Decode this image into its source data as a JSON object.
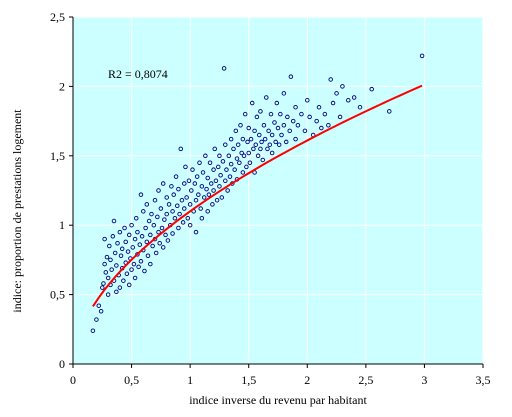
{
  "chart_data": {
    "type": "scatter",
    "xlabel": "indice inverse du revenu par habitant",
    "ylabel": "indice: proportion de prestations logement",
    "annotation": "R2 = 0,8074",
    "xlim": [
      0,
      3.5
    ],
    "ylim": [
      0,
      2.5
    ],
    "xticks": [
      0,
      0.5,
      1,
      1.5,
      2,
      2.5,
      3,
      3.5
    ],
    "yticks": [
      0,
      0.5,
      1,
      1.5,
      2,
      2.5
    ],
    "xtick_labels": [
      "0",
      "0,5",
      "1",
      "1,5",
      "2",
      "2,5",
      "3",
      "3,5"
    ],
    "ytick_labels": [
      "0",
      "0,5",
      "1",
      "1,5",
      "2",
      "2,5"
    ],
    "grid": true,
    "colors": {
      "plot_bg": "#ccffff",
      "points": "#000080",
      "trend": "#ff0000",
      "grid": "#ffffff"
    },
    "trendline": {
      "type": "power",
      "a": 1.1,
      "b": 0.55,
      "x_range": [
        0.17,
        2.98
      ]
    },
    "points": [
      [
        0.17,
        0.24
      ],
      [
        0.2,
        0.32
      ],
      [
        0.22,
        0.42
      ],
      [
        0.24,
        0.38
      ],
      [
        0.25,
        0.55
      ],
      [
        0.26,
        0.58
      ],
      [
        0.27,
        0.72
      ],
      [
        0.27,
        0.9
      ],
      [
        0.28,
        0.66
      ],
      [
        0.29,
        0.77
      ],
      [
        0.3,
        0.62
      ],
      [
        0.3,
        0.5
      ],
      [
        0.31,
        0.85
      ],
      [
        0.32,
        0.57
      ],
      [
        0.32,
        0.75
      ],
      [
        0.33,
        0.68
      ],
      [
        0.34,
        0.92
      ],
      [
        0.35,
        0.6
      ],
      [
        0.35,
        1.03
      ],
      [
        0.36,
        0.8
      ],
      [
        0.37,
        0.52
      ],
      [
        0.37,
        0.71
      ],
      [
        0.38,
        0.87
      ],
      [
        0.39,
        0.64
      ],
      [
        0.4,
        0.95
      ],
      [
        0.4,
        0.55
      ],
      [
        0.41,
        0.78
      ],
      [
        0.42,
        0.69
      ],
      [
        0.42,
        0.83
      ],
      [
        0.43,
        0.6
      ],
      [
        0.44,
        0.98
      ],
      [
        0.45,
        0.73
      ],
      [
        0.45,
        0.88
      ],
      [
        0.46,
        0.65
      ],
      [
        0.47,
        0.81
      ],
      [
        0.48,
        0.93
      ],
      [
        0.48,
        0.57
      ],
      [
        0.49,
        0.76
      ],
      [
        0.5,
        1.0
      ],
      [
        0.5,
        0.68
      ],
      [
        0.51,
        0.84
      ],
      [
        0.52,
        0.72
      ],
      [
        0.53,
        0.9
      ],
      [
        0.53,
        0.62
      ],
      [
        0.54,
        1.05
      ],
      [
        0.55,
        0.79
      ],
      [
        0.55,
        0.95
      ],
      [
        0.56,
        0.7
      ],
      [
        0.57,
        0.86
      ],
      [
        0.58,
        1.22
      ],
      [
        0.58,
        0.74
      ],
      [
        0.59,
        0.92
      ],
      [
        0.6,
        0.82
      ],
      [
        0.6,
        1.1
      ],
      [
        0.61,
        0.67
      ],
      [
        0.62,
        0.98
      ],
      [
        0.63,
        0.88
      ],
      [
        0.63,
        1.15
      ],
      [
        0.64,
        0.78
      ],
      [
        0.65,
        1.03
      ],
      [
        0.66,
        0.93
      ],
      [
        0.66,
        0.72
      ],
      [
        0.67,
        1.08
      ],
      [
        0.68,
        0.85
      ],
      [
        0.69,
        1.0
      ],
      [
        0.7,
        0.9
      ],
      [
        0.7,
        1.18
      ],
      [
        0.71,
        0.8
      ],
      [
        0.72,
        1.06
      ],
      [
        0.73,
        0.95
      ],
      [
        0.73,
        1.25
      ],
      [
        0.74,
        0.87
      ],
      [
        0.75,
        1.12
      ],
      [
        0.76,
        0.98
      ],
      [
        0.77,
        1.3
      ],
      [
        0.77,
        0.84
      ],
      [
        0.78,
        1.04
      ],
      [
        0.79,
        0.93
      ],
      [
        0.8,
        1.2
      ],
      [
        0.8,
        1.08
      ],
      [
        0.81,
        0.89
      ],
      [
        0.82,
        1.15
      ],
      [
        0.83,
        1.0
      ],
      [
        0.84,
        1.28
      ],
      [
        0.85,
        1.1
      ],
      [
        0.85,
        0.94
      ],
      [
        0.86,
        1.22
      ],
      [
        0.87,
        1.05
      ],
      [
        0.88,
        1.35
      ],
      [
        0.89,
        1.14
      ],
      [
        0.9,
        0.98
      ],
      [
        0.9,
        1.26
      ],
      [
        0.91,
        1.08
      ],
      [
        0.92,
        1.55
      ],
      [
        0.93,
        1.18
      ],
      [
        0.94,
        1.02
      ],
      [
        0.95,
        1.3
      ],
      [
        0.95,
        1.12
      ],
      [
        0.96,
        1.42
      ],
      [
        0.97,
        1.2
      ],
      [
        0.98,
        1.05
      ],
      [
        0.99,
        1.32
      ],
      [
        1.0,
        1.15
      ],
      [
        1.0,
        1.0
      ],
      [
        1.01,
        1.25
      ],
      [
        1.02,
        1.4
      ],
      [
        1.03,
        1.1
      ],
      [
        1.04,
        1.3
      ],
      [
        1.05,
        1.18
      ],
      [
        1.05,
        0.95
      ],
      [
        1.06,
        1.35
      ],
      [
        1.07,
        1.22
      ],
      [
        1.08,
        1.45
      ],
      [
        1.09,
        1.12
      ],
      [
        1.1,
        1.28
      ],
      [
        1.1,
        1.05
      ],
      [
        1.11,
        1.38
      ],
      [
        1.12,
        1.2
      ],
      [
        1.13,
        1.5
      ],
      [
        1.14,
        1.26
      ],
      [
        1.15,
        1.1
      ],
      [
        1.15,
        1.34
      ],
      [
        1.16,
        1.22
      ],
      [
        1.17,
        1.45
      ],
      [
        1.18,
        1.3
      ],
      [
        1.19,
        1.15
      ],
      [
        1.2,
        1.4
      ],
      [
        1.2,
        1.25
      ],
      [
        1.21,
        1.55
      ],
      [
        1.22,
        1.32
      ],
      [
        1.23,
        1.18
      ],
      [
        1.24,
        1.42
      ],
      [
        1.25,
        1.28
      ],
      [
        1.25,
        1.5
      ],
      [
        1.26,
        1.36
      ],
      [
        1.27,
        1.2
      ],
      [
        1.28,
        1.46
      ],
      [
        1.29,
        2.13
      ],
      [
        1.3,
        1.32
      ],
      [
        1.3,
        1.58
      ],
      [
        1.31,
        1.4
      ],
      [
        1.32,
        1.25
      ],
      [
        1.33,
        1.5
      ],
      [
        1.34,
        1.35
      ],
      [
        1.35,
        1.62
      ],
      [
        1.35,
        1.44
      ],
      [
        1.36,
        1.3
      ],
      [
        1.37,
        1.55
      ],
      [
        1.38,
        1.4
      ],
      [
        1.39,
        1.68
      ],
      [
        1.4,
        1.48
      ],
      [
        1.4,
        1.33
      ],
      [
        1.41,
        1.58
      ],
      [
        1.42,
        1.45
      ],
      [
        1.43,
        1.72
      ],
      [
        1.44,
        1.52
      ],
      [
        1.45,
        1.38
      ],
      [
        1.45,
        1.62
      ],
      [
        1.46,
        1.5
      ],
      [
        1.47,
        1.8
      ],
      [
        1.48,
        1.42
      ],
      [
        1.49,
        1.6
      ],
      [
        1.5,
        1.52
      ],
      [
        1.5,
        1.7
      ],
      [
        1.51,
        1.45
      ],
      [
        1.52,
        1.62
      ],
      [
        1.53,
        1.88
      ],
      [
        1.54,
        1.55
      ],
      [
        1.55,
        1.38
      ],
      [
        1.55,
        1.68
      ],
      [
        1.56,
        1.58
      ],
      [
        1.57,
        1.78
      ],
      [
        1.58,
        1.5
      ],
      [
        1.59,
        1.65
      ],
      [
        1.6,
        1.55
      ],
      [
        1.6,
        1.82
      ],
      [
        1.61,
        1.6
      ],
      [
        1.62,
        1.47
      ],
      [
        1.63,
        1.72
      ],
      [
        1.64,
        1.62
      ],
      [
        1.65,
        1.92
      ],
      [
        1.66,
        1.55
      ],
      [
        1.67,
        1.68
      ],
      [
        1.68,
        1.58
      ],
      [
        1.69,
        1.8
      ],
      [
        1.7,
        1.65
      ],
      [
        1.7,
        1.52
      ],
      [
        1.72,
        1.74
      ],
      [
        1.73,
        1.6
      ],
      [
        1.74,
        1.88
      ],
      [
        1.75,
        1.7
      ],
      [
        1.76,
        1.58
      ],
      [
        1.77,
        1.8
      ],
      [
        1.78,
        1.65
      ],
      [
        1.8,
        1.95
      ],
      [
        1.8,
        1.72
      ],
      [
        1.82,
        1.6
      ],
      [
        1.83,
        1.78
      ],
      [
        1.85,
        1.68
      ],
      [
        1.86,
        2.07
      ],
      [
        1.88,
        1.75
      ],
      [
        1.9,
        1.62
      ],
      [
        1.9,
        1.85
      ],
      [
        1.92,
        1.72
      ],
      [
        1.95,
        1.8
      ],
      [
        1.98,
        1.68
      ],
      [
        2.0,
        1.9
      ],
      [
        2.02,
        1.78
      ],
      [
        2.05,
        1.65
      ],
      [
        2.08,
        1.75
      ],
      [
        2.1,
        1.85
      ],
      [
        2.12,
        1.7
      ],
      [
        2.15,
        1.8
      ],
      [
        2.18,
        1.72
      ],
      [
        2.2,
        2.05
      ],
      [
        2.22,
        1.88
      ],
      [
        2.25,
        1.95
      ],
      [
        2.28,
        1.78
      ],
      [
        2.3,
        2.0
      ],
      [
        2.35,
        1.9
      ],
      [
        2.4,
        1.92
      ],
      [
        2.45,
        1.85
      ],
      [
        2.55,
        1.98
      ],
      [
        2.7,
        1.82
      ],
      [
        2.98,
        2.22
      ]
    ]
  }
}
